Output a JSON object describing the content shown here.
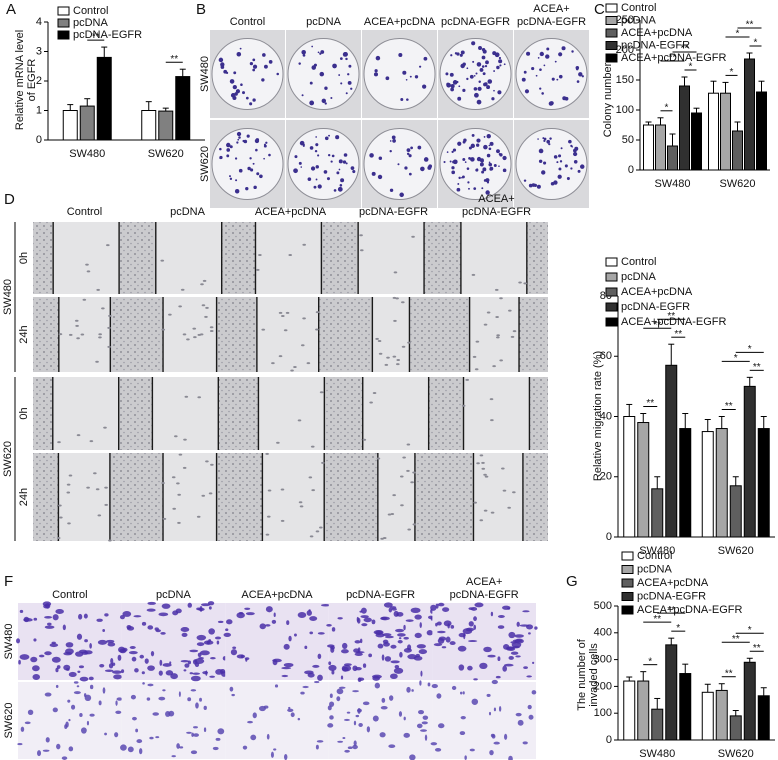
{
  "chart_data": [
    {
      "type": "bar",
      "panel_label": "A",
      "ylabel": [
        "Relative mRNA level",
        "of EGFR"
      ],
      "categories": [
        "SW480",
        "SW620"
      ],
      "series": [
        {
          "name": "Control",
          "color": "#ffffff",
          "values": [
            1.0,
            1.0
          ],
          "errors": [
            0.2,
            0.3
          ]
        },
        {
          "name": "pcDNA",
          "color": "#808080",
          "values": [
            1.15,
            0.98
          ],
          "errors": [
            0.25,
            0.1
          ]
        },
        {
          "name": "pcDNA-EGFR",
          "color": "#000000",
          "values": [
            2.8,
            2.15
          ],
          "errors": [
            0.35,
            0.25
          ]
        }
      ],
      "ylim": [
        0,
        4
      ],
      "yticks": [
        0,
        1,
        2,
        3,
        4
      ],
      "annotations": [
        {
          "text": "**",
          "category": 0,
          "bars": [
            1,
            2
          ]
        },
        {
          "text": "**",
          "category": 1,
          "bars": [
            1,
            2
          ]
        }
      ]
    },
    {
      "type": "bar",
      "panel_label": "C",
      "ylabel": [
        "Colony number"
      ],
      "categories": [
        "SW480",
        "SW620"
      ],
      "series": [
        {
          "name": "Control",
          "color": "#ffffff",
          "values": [
            75,
            128
          ],
          "errors": [
            5,
            20
          ]
        },
        {
          "name": "pcDNA",
          "color": "#a6a6a6",
          "values": [
            75,
            128
          ],
          "errors": [
            12,
            18
          ]
        },
        {
          "name": "ACEA+pcDNA",
          "color": "#5f5f5f",
          "values": [
            40,
            65
          ],
          "errors": [
            20,
            15
          ]
        },
        {
          "name": "pcDNA-EGFR",
          "color": "#303030",
          "values": [
            140,
            185
          ],
          "errors": [
            15,
            10
          ]
        },
        {
          "name": "ACEA+pcDNA-EGFR",
          "color": "#000000",
          "values": [
            95,
            130
          ],
          "errors": [
            8,
            18
          ]
        }
      ],
      "ylim": [
        0,
        250
      ],
      "yticks": [
        0,
        50,
        100,
        150,
        200,
        250
      ],
      "annotations": [
        {
          "text": "*",
          "category": 0,
          "bars": [
            1,
            2
          ]
        },
        {
          "text": "*",
          "category": 0,
          "bars": [
            3,
            4
          ]
        },
        {
          "text": "**",
          "category": 0,
          "bars": [
            1,
            3
          ]
        },
        {
          "text": "**",
          "category": 0,
          "bars": [
            2,
            4
          ]
        },
        {
          "text": "*",
          "category": 1,
          "bars": [
            1,
            2
          ]
        },
        {
          "text": "*",
          "category": 1,
          "bars": [
            3,
            4
          ]
        },
        {
          "text": "*",
          "category": 1,
          "bars": [
            1,
            3
          ]
        },
        {
          "text": "**",
          "category": 1,
          "bars": [
            2,
            4
          ]
        }
      ]
    },
    {
      "type": "bar",
      "panel_label": "E",
      "ylabel": [
        "Relative migration rate (%)"
      ],
      "categories": [
        "SW480",
        "SW620"
      ],
      "series": [
        {
          "name": "Control",
          "color": "#ffffff",
          "values": [
            40,
            35
          ],
          "errors": [
            4,
            4
          ]
        },
        {
          "name": "pcDNA",
          "color": "#a6a6a6",
          "values": [
            38,
            36
          ],
          "errors": [
            3,
            4
          ]
        },
        {
          "name": "ACEA+pcDNA",
          "color": "#5f5f5f",
          "values": [
            16,
            17
          ],
          "errors": [
            4,
            3
          ]
        },
        {
          "name": "pcDNA-EGFR",
          "color": "#303030",
          "values": [
            57,
            50
          ],
          "errors": [
            7,
            3
          ]
        },
        {
          "name": "ACEA+pcDNA-EGFR",
          "color": "#000000",
          "values": [
            36,
            36
          ],
          "errors": [
            5,
            4
          ]
        }
      ],
      "ylim": [
        0,
        80
      ],
      "yticks": [
        0,
        20,
        40,
        60,
        80
      ],
      "annotations": [
        {
          "text": "**",
          "category": 0,
          "bars": [
            1,
            2
          ]
        },
        {
          "text": "**",
          "category": 0,
          "bars": [
            3,
            4
          ]
        },
        {
          "text": "**",
          "category": 0,
          "bars": [
            1,
            3
          ]
        },
        {
          "text": "**",
          "category": 0,
          "bars": [
            2,
            4
          ]
        },
        {
          "text": "**",
          "category": 1,
          "bars": [
            1,
            2
          ]
        },
        {
          "text": "**",
          "category": 1,
          "bars": [
            3,
            4
          ]
        },
        {
          "text": "*",
          "category": 1,
          "bars": [
            1,
            3
          ]
        },
        {
          "text": "*",
          "category": 1,
          "bars": [
            2,
            4
          ]
        }
      ]
    },
    {
      "type": "bar",
      "panel_label": "G",
      "ylabel": [
        "The number of",
        "invaded cells"
      ],
      "categories": [
        "SW480",
        "SW620"
      ],
      "series": [
        {
          "name": "Control",
          "color": "#ffffff",
          "values": [
            220,
            178
          ],
          "errors": [
            15,
            30
          ]
        },
        {
          "name": "pcDNA",
          "color": "#a6a6a6",
          "values": [
            220,
            185
          ],
          "errors": [
            35,
            25
          ]
        },
        {
          "name": "ACEA+pcDNA",
          "color": "#5f5f5f",
          "values": [
            115,
            90
          ],
          "errors": [
            40,
            20
          ]
        },
        {
          "name": "pcDNA-EGFR",
          "color": "#303030",
          "values": [
            355,
            290
          ],
          "errors": [
            25,
            15
          ]
        },
        {
          "name": "ACEA+pcDNA-EGFR",
          "color": "#000000",
          "values": [
            248,
            165
          ],
          "errors": [
            35,
            30
          ]
        }
      ],
      "ylim": [
        0,
        500
      ],
      "yticks": [
        0,
        100,
        200,
        300,
        400,
        500
      ],
      "annotations": [
        {
          "text": "*",
          "category": 0,
          "bars": [
            1,
            2
          ]
        },
        {
          "text": "*",
          "category": 0,
          "bars": [
            3,
            4
          ]
        },
        {
          "text": "**",
          "category": 0,
          "bars": [
            1,
            3
          ]
        },
        {
          "text": "**",
          "category": 0,
          "bars": [
            2,
            4
          ]
        },
        {
          "text": "**",
          "category": 1,
          "bars": [
            1,
            2
          ]
        },
        {
          "text": "**",
          "category": 1,
          "bars": [
            3,
            4
          ]
        },
        {
          "text": "**",
          "category": 1,
          "bars": [
            1,
            3
          ]
        },
        {
          "text": "*",
          "category": 1,
          "bars": [
            2,
            4
          ]
        }
      ]
    }
  ],
  "image_panels": [
    {
      "label": "B",
      "columns": [
        "Control",
        "pcDNA",
        "ACEA+pcDNA",
        "pcDNA-EGFR",
        [
          "ACEA+",
          "pcDNA-EGFR"
        ]
      ],
      "rows": [
        {
          "label": "SW480"
        },
        {
          "label": "SW620"
        }
      ]
    },
    {
      "label": "D",
      "columns": [
        "Control",
        "pcDNA",
        "ACEA+pcDNA",
        "pcDNA-EGFR",
        [
          "ACEA+",
          "pcDNA-EGFR"
        ]
      ],
      "rows": [
        {
          "label": "SW480",
          "times": [
            "0h",
            "24h"
          ]
        },
        {
          "label": "SW620",
          "times": [
            "0h",
            "24h"
          ]
        }
      ]
    },
    {
      "label": "F",
      "columns": [
        "Control",
        "pcDNA",
        "ACEA+pcDNA",
        "pcDNA-EGFR",
        [
          "ACEA+",
          "pcDNA-EGFR"
        ]
      ],
      "rows": [
        {
          "label": "SW480"
        },
        {
          "label": "SW620"
        }
      ]
    }
  ]
}
